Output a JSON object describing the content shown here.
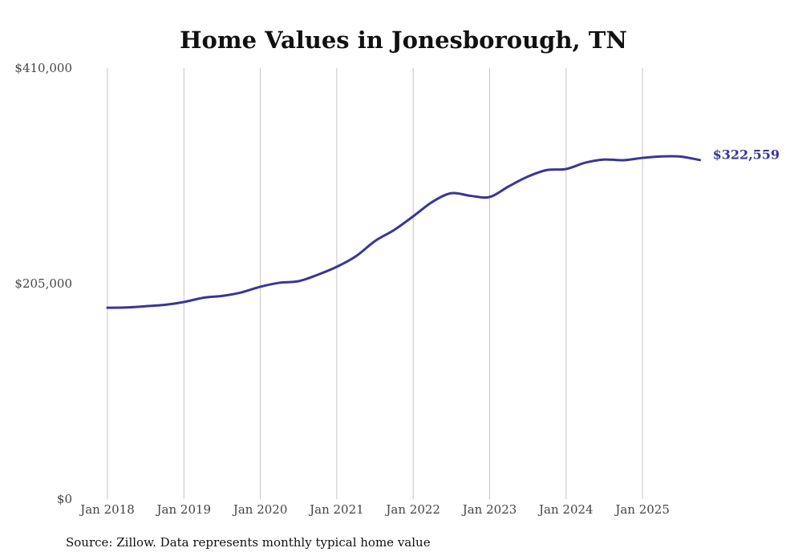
{
  "chart_data": {
    "type": "line",
    "title": "Home Values in Jonesborough, TN",
    "xlabel": "",
    "ylabel": "",
    "ylim": [
      0,
      410000
    ],
    "yticks": [
      0,
      205000,
      410000
    ],
    "ytick_labels": [
      "$0",
      "$205,000",
      "$410,000"
    ],
    "xticks": [
      2018,
      2019,
      2020,
      2021,
      2022,
      2023,
      2024,
      2025
    ],
    "xtick_labels": [
      "Jan 2018",
      "Jan 2019",
      "Jan 2020",
      "Jan 2021",
      "Jan 2022",
      "Jan 2023",
      "Jan 2024",
      "Jan 2025"
    ],
    "xlim": [
      2018,
      2025.75
    ],
    "grid": "vertical",
    "line_color": "#3a3597",
    "end_label": "$322,559",
    "series": [
      {
        "name": "Typical home value",
        "x": [
          2018,
          2018.25,
          2018.5,
          2018.75,
          2019,
          2019.25,
          2019.5,
          2019.75,
          2020,
          2020.25,
          2020.5,
          2020.75,
          2021,
          2021.25,
          2021.5,
          2021.75,
          2022,
          2022.25,
          2022.5,
          2022.75,
          2023,
          2023.25,
          2023.5,
          2023.75,
          2024,
          2024.25,
          2024.5,
          2024.75,
          2025,
          2025.25,
          2025.5,
          2025.75
        ],
        "values": [
          182000,
          182300,
          183500,
          184800,
          187500,
          191500,
          193300,
          196600,
          202000,
          205800,
          207300,
          213400,
          221000,
          231000,
          245500,
          256000,
          269000,
          282700,
          291000,
          288500,
          287400,
          297500,
          306800,
          313000,
          314000,
          320000,
          323000,
          322400,
          324600,
          326000,
          325800,
          322559
        ]
      }
    ]
  },
  "source": "Source: Zillow. Data represents monthly typical home value"
}
